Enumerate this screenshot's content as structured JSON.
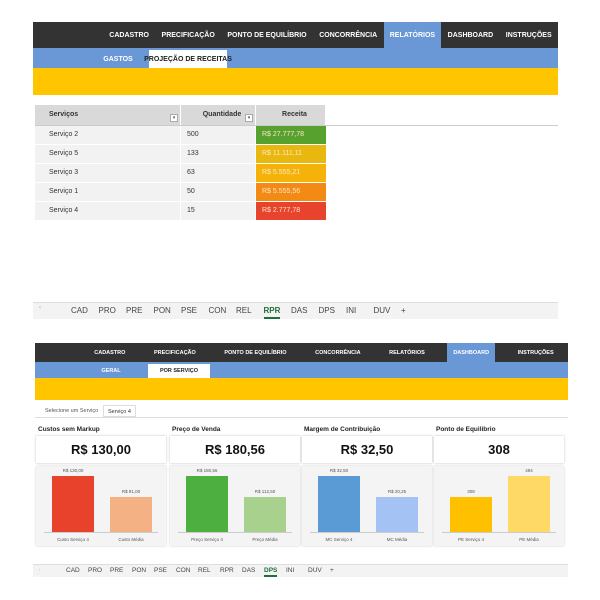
{
  "sheet1": {
    "nav": [
      "CADASTRO",
      "PRECIFICAÇÃO",
      "PONTO DE EQUILÍBRIO",
      "CONCORRÊNCIA",
      "RELATÓRIOS",
      "DASHBOARD",
      "INSTRUÇÕES"
    ],
    "nav_active": 4,
    "subnav": [
      "GASTOS",
      "PROJEÇÃO DE RECEITAS"
    ],
    "subnav_active": 1,
    "table": {
      "headers": [
        "Serviços",
        "Quantidade",
        "Receita"
      ],
      "rows": [
        [
          "Serviço 2",
          500,
          "R$ 27.777,78"
        ],
        [
          "Serviço 5",
          133,
          "R$ 11.111,11"
        ],
        [
          "Serviço 3",
          63,
          "R$ 5.555,21"
        ],
        [
          "Serviço 1",
          50,
          "R$ 5.555,56"
        ],
        [
          "Serviço 4",
          15,
          "R$ 2.777,78"
        ]
      ],
      "colors": [
        "#57a12f",
        "#e9b80f",
        "#f5b30a",
        "#f28a13",
        "#e8432c"
      ]
    },
    "sheet_tabs": [
      "CAD",
      "PRO",
      "PRE",
      "PON",
      "PSE",
      "CON",
      "REL",
      "RPR",
      "DAS",
      "DPS",
      "INI",
      "DUV",
      "+"
    ],
    "sheet_active": 7
  },
  "sheet2": {
    "nav": [
      "CADASTRO",
      "PRECIFICAÇÃO",
      "PONTO DE EQUILÍBRIO",
      "CONCORRÊNCIA",
      "RELATÓRIOS",
      "DASHBOARD",
      "INSTRUÇÕES"
    ],
    "nav_active": 5,
    "subnav": [
      "GERAL",
      "POR SERVIÇO"
    ],
    "subnav_active": 1,
    "selector": {
      "label": "Selecione um Serviço",
      "value": "Serviço 4"
    },
    "cards": [
      {
        "title": "Custos sem Markup",
        "value": "R$ 130,00",
        "bars": {
          "categories": [
            "Custo Serviço 4",
            "Custo Média"
          ],
          "values": [
            130,
            81
          ],
          "value_labels": [
            "R$ 130,00",
            "R$ 81,00"
          ],
          "colors": [
            "#e8412c",
            "#f4b183"
          ]
        }
      },
      {
        "title": "Preço de Venda",
        "value": "R$ 180,56",
        "bars": {
          "categories": [
            "Preço Serviço 4",
            "Preço Média"
          ],
          "values": [
            180.56,
            112.5
          ],
          "value_labels": [
            "R$ 180,56",
            "R$ 112,50"
          ],
          "colors": [
            "#4caf3f",
            "#a9d18e"
          ]
        }
      },
      {
        "title": "Margem de Contribuição",
        "value": "R$ 32,50",
        "bars": {
          "categories": [
            "MC Serviço 4",
            "MC Média"
          ],
          "values": [
            32.5,
            20.25
          ],
          "value_labels": [
            "R$ 32,50",
            "R$ 20,25"
          ],
          "colors": [
            "#5b9bd5",
            "#a4c2f4"
          ]
        }
      },
      {
        "title": "Ponto de Equilíbrio",
        "value": "308",
        "bars": {
          "categories": [
            "PE Serviço 4",
            "PE Média"
          ],
          "values": [
            308,
            494
          ],
          "value_labels": [
            "308",
            "494"
          ],
          "colors": [
            "#ffc000",
            "#ffd966"
          ]
        }
      }
    ],
    "sheet_tabs": [
      "CAD",
      "PRO",
      "PRE",
      "PON",
      "PSE",
      "CON",
      "REL",
      "RPR",
      "DAS",
      "DPS",
      "INI",
      "DUV",
      "+"
    ],
    "sheet_active": 9
  }
}
